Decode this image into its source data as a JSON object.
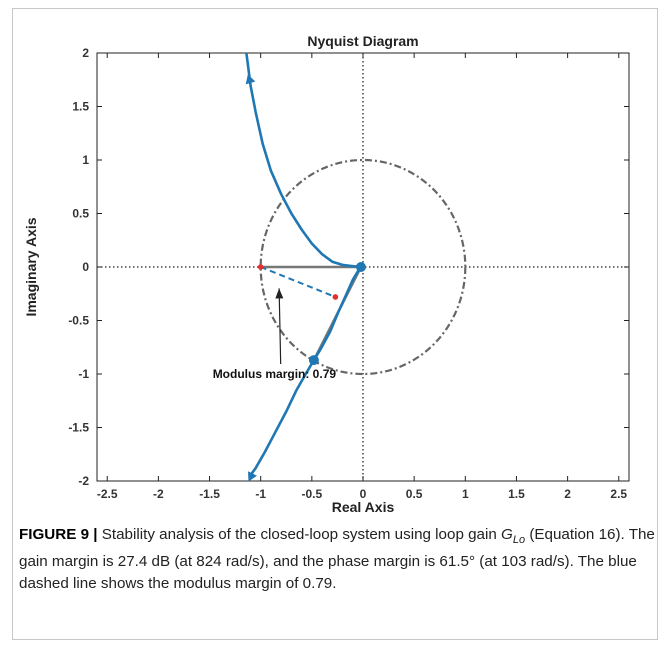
{
  "chart_data": {
    "type": "line",
    "title": "Nyquist Diagram",
    "xlabel": "Real Axis",
    "ylabel": "Imaginary Axis",
    "xlim": [
      -2.6,
      2.6
    ],
    "ylim": [
      -2,
      2
    ],
    "xticks": [
      -2.5,
      -2,
      -1.5,
      -1,
      -0.5,
      0,
      0.5,
      1,
      1.5,
      2,
      2.5
    ],
    "yticks": [
      -2,
      -1.5,
      -1,
      -0.5,
      0,
      0.5,
      1,
      1.5,
      2
    ],
    "grid": false,
    "colors": {
      "curve": "#1f77b4",
      "circle": "#666666",
      "gray_lines": "#777777",
      "red_points": "#e03030"
    },
    "series": [
      {
        "x": [
          -1.14,
          -1.1,
          -1.05,
          -0.98,
          -0.9,
          -0.8,
          -0.7,
          -0.6,
          -0.5,
          -0.4,
          -0.3,
          -0.2,
          -0.12,
          -0.06,
          -0.03,
          -0.02
        ],
        "y": [
          2.0,
          1.7,
          1.45,
          1.15,
          0.9,
          0.68,
          0.5,
          0.35,
          0.22,
          0.12,
          0.05,
          0.02,
          0.01,
          0.005,
          0.002,
          0.0
        ]
      },
      {
        "x": [
          -0.02,
          -0.05,
          -0.1,
          -0.16,
          -0.24,
          -0.32,
          -0.41,
          -0.48,
          -0.56,
          -0.65,
          -0.75,
          -0.86,
          -0.96,
          -1.05,
          -1.11
        ],
        "y": [
          0.0,
          -0.04,
          -0.12,
          -0.25,
          -0.42,
          -0.6,
          -0.76,
          -0.87,
          -1.0,
          -1.15,
          -1.35,
          -1.55,
          -1.73,
          -1.88,
          -1.96
        ]
      }
    ],
    "unit_circle": {
      "center": [
        0,
        0
      ],
      "radius": 1
    },
    "markers": {
      "origin_point": [
        -0.02,
        0
      ],
      "unit_circle_crossing": [
        -0.48,
        -0.87
      ],
      "critical_point": [
        -1,
        0
      ],
      "closest_point": [
        -0.27,
        -0.28
      ]
    },
    "annotations": [
      {
        "text": "Modulus margin: 0.79",
        "from": [
          -1.0,
          -1.0
        ],
        "to": [
          -0.82,
          -0.2
        ]
      }
    ]
  },
  "caption": {
    "label": "FIGURE 9 |",
    "text_1": " Stability analysis of the closed-loop system using loop gain ",
    "g_symbol": "G",
    "g_sub": "Lo",
    "text_2": " (Equation 16). The gain margin is 27.4 dB (at 824 rad/s), and the phase margin is 61.5° (at 103 rad/s). The blue dashed line shows the modulus margin of 0.79."
  }
}
